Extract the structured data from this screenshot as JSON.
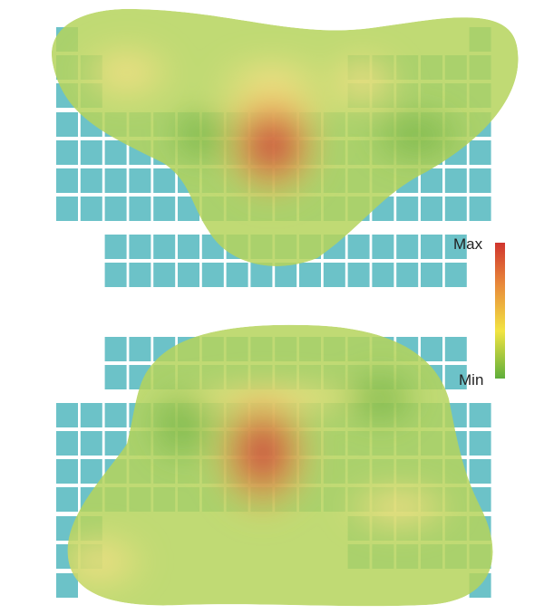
{
  "legend": {
    "max": "Max",
    "min": "Min"
  }
}
